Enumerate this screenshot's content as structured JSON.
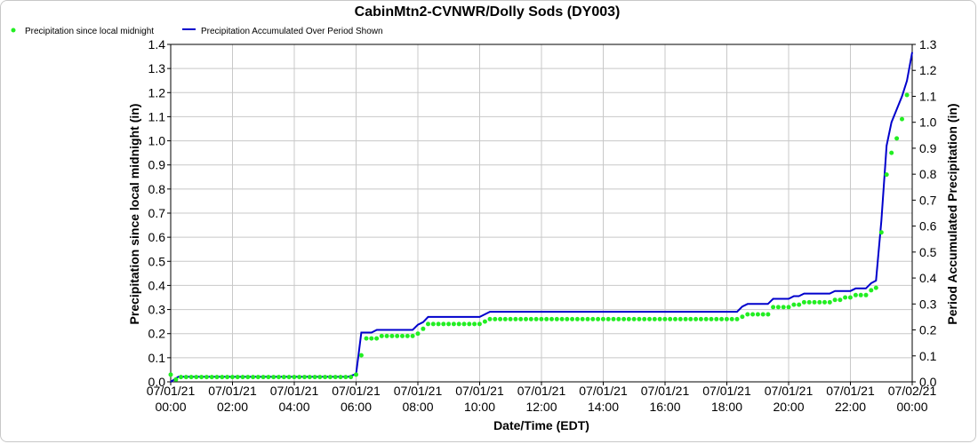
{
  "chart_data": {
    "type": "line",
    "title": "CabinMtn2-CVNWR/Dolly Sods (DY003)",
    "xlabel": "Date/Time (EDT)",
    "ylabel_left": "Precipitation since local midnight (in)",
    "ylabel_right": "Period Accumulated Precipitation (in)",
    "ylim_left": [
      0,
      1.4
    ],
    "ylim_right": [
      0,
      1.3
    ],
    "x_hours_range": [
      0,
      24
    ],
    "grid": true,
    "legend_position": "top-left",
    "x_ticks": [
      {
        "hour": 0,
        "date": "07/01/21",
        "time": "00:00"
      },
      {
        "hour": 2,
        "date": "07/01/21",
        "time": "02:00"
      },
      {
        "hour": 4,
        "date": "07/01/21",
        "time": "04:00"
      },
      {
        "hour": 6,
        "date": "07/01/21",
        "time": "06:00"
      },
      {
        "hour": 8,
        "date": "07/01/21",
        "time": "08:00"
      },
      {
        "hour": 10,
        "date": "07/01/21",
        "time": "10:00"
      },
      {
        "hour": 12,
        "date": "07/01/21",
        "time": "12:00"
      },
      {
        "hour": 14,
        "date": "07/01/21",
        "time": "14:00"
      },
      {
        "hour": 16,
        "date": "07/01/21",
        "time": "16:00"
      },
      {
        "hour": 18,
        "date": "07/01/21",
        "time": "18:00"
      },
      {
        "hour": 20,
        "date": "07/01/21",
        "time": "20:00"
      },
      {
        "hour": 22,
        "date": "07/01/21",
        "time": "22:00"
      },
      {
        "hour": 24,
        "date": "07/02/21",
        "time": "00:00"
      }
    ],
    "y_ticks_left": [
      "0.0",
      "0.1",
      "0.2",
      "0.3",
      "0.4",
      "0.5",
      "0.6",
      "0.7",
      "0.8",
      "0.9",
      "1.0",
      "1.1",
      "1.2",
      "1.3",
      "1.4"
    ],
    "y_ticks_right": [
      "0.0",
      "0.1",
      "0.2",
      "0.3",
      "0.4",
      "0.5",
      "0.6",
      "0.7",
      "0.8",
      "0.9",
      "1.0",
      "1.1",
      "1.2",
      "1.3"
    ],
    "series": [
      {
        "name": "Precipitation since local midnight",
        "style": "dots",
        "color": "#22ee22",
        "axis": "left",
        "segments": [
          {
            "from": 0.0,
            "to": 0.0,
            "value": 0.03
          },
          {
            "from": 0.17,
            "to": 0.17,
            "value": 0.01
          },
          {
            "from": 0.33,
            "to": 5.83,
            "value": 0.02
          },
          {
            "from": 6.0,
            "to": 6.0,
            "value": 0.03
          },
          {
            "from": 6.17,
            "to": 6.17,
            "value": 0.11
          },
          {
            "from": 6.33,
            "to": 6.67,
            "value": 0.18
          },
          {
            "from": 6.83,
            "to": 7.83,
            "value": 0.19
          },
          {
            "from": 8.0,
            "to": 8.0,
            "value": 0.2
          },
          {
            "from": 8.17,
            "to": 8.17,
            "value": 0.22
          },
          {
            "from": 8.33,
            "to": 10.0,
            "value": 0.24
          },
          {
            "from": 10.17,
            "to": 10.17,
            "value": 0.25
          },
          {
            "from": 10.33,
            "to": 18.33,
            "value": 0.26
          },
          {
            "from": 18.5,
            "to": 18.5,
            "value": 0.27
          },
          {
            "from": 18.67,
            "to": 19.33,
            "value": 0.28
          },
          {
            "from": 19.5,
            "to": 20.0,
            "value": 0.31
          },
          {
            "from": 20.17,
            "to": 20.33,
            "value": 0.32
          },
          {
            "from": 20.5,
            "to": 21.33,
            "value": 0.33
          },
          {
            "from": 21.5,
            "to": 21.67,
            "value": 0.34
          },
          {
            "from": 21.83,
            "to": 22.0,
            "value": 0.35
          },
          {
            "from": 22.17,
            "to": 22.5,
            "value": 0.36
          },
          {
            "from": 22.67,
            "to": 22.67,
            "value": 0.38
          },
          {
            "from": 22.83,
            "to": 22.83,
            "value": 0.39
          },
          {
            "from": 23.0,
            "to": 23.0,
            "value": 0.62
          },
          {
            "from": 23.17,
            "to": 23.17,
            "value": 0.86
          },
          {
            "from": 23.33,
            "to": 23.33,
            "value": 0.95
          },
          {
            "from": 23.5,
            "to": 23.5,
            "value": 1.01
          },
          {
            "from": 23.67,
            "to": 23.67,
            "value": 1.09
          },
          {
            "from": 23.83,
            "to": 23.83,
            "value": 1.19
          }
        ]
      },
      {
        "name": "Precipitation Accumulated Over Period Shown",
        "style": "line",
        "color": "#0000cc",
        "axis": "right",
        "x": [
          0,
          0.25,
          5.75,
          6.0,
          6.17,
          6.5,
          6.67,
          7.83,
          8.0,
          8.17,
          8.33,
          10.0,
          10.33,
          18.33,
          18.5,
          18.67,
          19.33,
          19.5,
          20.0,
          20.17,
          20.33,
          20.5,
          21.33,
          21.5,
          22.0,
          22.17,
          22.5,
          22.67,
          22.83,
          23.0,
          23.17,
          23.33,
          23.5,
          23.67,
          23.83,
          24.0
        ],
        "values": [
          0.0,
          0.02,
          0.02,
          0.03,
          0.19,
          0.19,
          0.2,
          0.2,
          0.22,
          0.23,
          0.25,
          0.25,
          0.27,
          0.27,
          0.29,
          0.3,
          0.3,
          0.32,
          0.32,
          0.33,
          0.33,
          0.34,
          0.34,
          0.35,
          0.35,
          0.36,
          0.36,
          0.38,
          0.39,
          0.62,
          0.91,
          1.0,
          1.05,
          1.1,
          1.16,
          1.27
        ]
      }
    ]
  }
}
